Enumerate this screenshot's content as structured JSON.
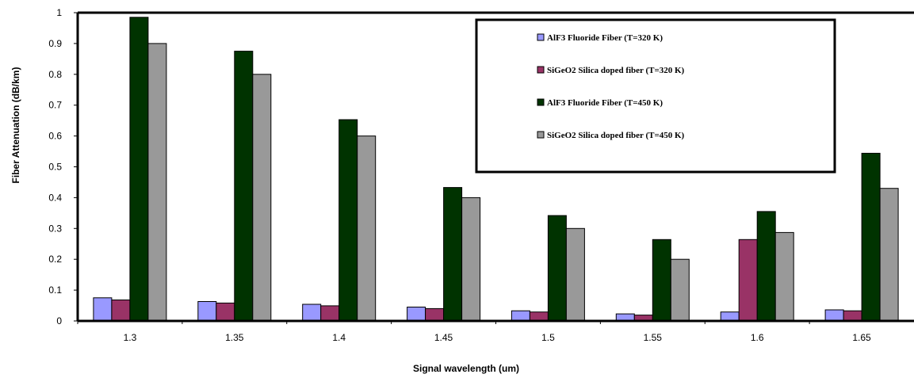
{
  "chart_data": {
    "type": "bar",
    "title": "",
    "xlabel": "Signal wavelength (um)",
    "ylabel": "Fiber Attenuation (dB/km)",
    "ylim": [
      0,
      1
    ],
    "yticks": [
      "0",
      "0.1",
      "0.2",
      "0.3",
      "0.4",
      "0.5",
      "0.6",
      "0.7",
      "0.8",
      "0.9",
      "1"
    ],
    "categories": [
      "1.3",
      "1.35",
      "1.4",
      "1.45",
      "1.5",
      "1.55",
      "1.6",
      "1.65"
    ],
    "legend_position": "top-right",
    "grid": false,
    "series": [
      {
        "name": "AlF3 Fluoride Fiber (T=320 K)",
        "color": "#9999ff",
        "values": [
          0.075,
          0.063,
          0.054,
          0.045,
          0.033,
          0.023,
          0.029,
          0.036
        ]
      },
      {
        "name": "SiGeO2 Silica doped fiber (T=320 K)",
        "color": "#993366",
        "values": [
          0.068,
          0.058,
          0.049,
          0.04,
          0.029,
          0.019,
          0.264,
          0.033
        ]
      },
      {
        "name": "AlF3 Fluoride Fiber (T=450 K)",
        "color": "#003300",
        "values": [
          0.985,
          0.875,
          0.653,
          0.433,
          0.342,
          0.264,
          0.355,
          0.544
        ]
      },
      {
        "name": "SiGeO2 Silica doped fiber (T=450 K)",
        "color": "#999999",
        "values": [
          0.9,
          0.8,
          0.6,
          0.4,
          0.3,
          0.2,
          0.287,
          0.43
        ]
      }
    ]
  }
}
